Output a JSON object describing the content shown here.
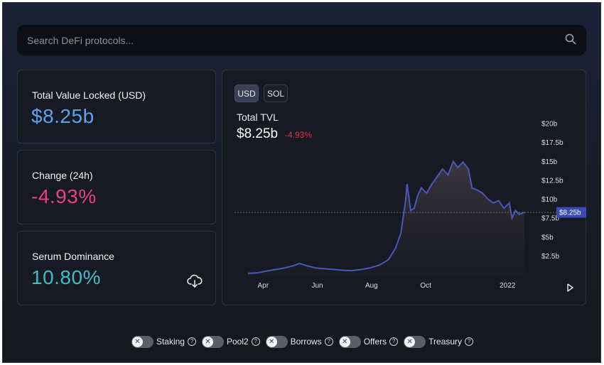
{
  "search": {
    "placeholder": "Search DeFi protocols..."
  },
  "cards": {
    "tvl": {
      "label": "Total Value Locked (USD)",
      "value": "$8.25b",
      "color": "#5aa4ee"
    },
    "change": {
      "label": "Change (24h)",
      "value": "-4.93%",
      "color": "#ea3f8a"
    },
    "dominance": {
      "label": "Serum Dominance",
      "value": "10.80%",
      "color": "#3fbcc4"
    }
  },
  "chart": {
    "currency_options": [
      "USD",
      "SOL"
    ],
    "selected_currency": "USD",
    "title": "Total TVL",
    "value": "$8.25b",
    "change": "-4.93%",
    "current_marker_label": "$8.25b",
    "colors": {
      "line": "#4a58b8",
      "marker": "#3b4bb5",
      "negative": "#e0324a"
    }
  },
  "chart_data": {
    "type": "area",
    "ylim": [
      0,
      20
    ],
    "y_ticks": [
      "$2.5b",
      "$5b",
      "$7.5b",
      "$10b",
      "$12.5b",
      "$15b",
      "$17.5b",
      "$20b"
    ],
    "x_ticks": [
      "Apr",
      "Jun",
      "Aug",
      "Oct",
      "2022"
    ],
    "x_range": [
      "2021-03-15",
      "2022-01-20"
    ],
    "current_value": 8.25,
    "points": [
      [
        "2021-03-15",
        0.2
      ],
      [
        "2021-03-25",
        0.25
      ],
      [
        "2021-04-05",
        0.5
      ],
      [
        "2021-04-15",
        0.7
      ],
      [
        "2021-04-25",
        0.9
      ],
      [
        "2021-05-05",
        1.2
      ],
      [
        "2021-05-12",
        1.5
      ],
      [
        "2021-05-20",
        1.2
      ],
      [
        "2021-05-30",
        0.9
      ],
      [
        "2021-06-10",
        0.8
      ],
      [
        "2021-06-20",
        0.7
      ],
      [
        "2021-06-30",
        0.6
      ],
      [
        "2021-07-10",
        0.55
      ],
      [
        "2021-07-20",
        0.7
      ],
      [
        "2021-07-30",
        0.9
      ],
      [
        "2021-08-10",
        1.3
      ],
      [
        "2021-08-20",
        2.0
      ],
      [
        "2021-08-28",
        3.5
      ],
      [
        "2021-09-03",
        5.5
      ],
      [
        "2021-09-08",
        9.5
      ],
      [
        "2021-09-10",
        12.0
      ],
      [
        "2021-09-14",
        8.5
      ],
      [
        "2021-09-18",
        8.8
      ],
      [
        "2021-09-22",
        10.5
      ],
      [
        "2021-09-26",
        11.5
      ],
      [
        "2021-10-02",
        10.8
      ],
      [
        "2021-10-08",
        12.0
      ],
      [
        "2021-10-14",
        13.0
      ],
      [
        "2021-10-20",
        14.0
      ],
      [
        "2021-10-26",
        13.2
      ],
      [
        "2021-11-01",
        15.0
      ],
      [
        "2021-11-06",
        14.2
      ],
      [
        "2021-11-12",
        14.9
      ],
      [
        "2021-11-18",
        14.0
      ],
      [
        "2021-11-22",
        11.5
      ],
      [
        "2021-11-28",
        11.2
      ],
      [
        "2021-12-04",
        10.8
      ],
      [
        "2021-12-10",
        10.0
      ],
      [
        "2021-12-16",
        9.5
      ],
      [
        "2021-12-22",
        9.8
      ],
      [
        "2021-12-28",
        8.8
      ],
      [
        "2022-01-03",
        9.5
      ],
      [
        "2022-01-06",
        7.5
      ],
      [
        "2022-01-10",
        8.5
      ],
      [
        "2022-01-14",
        8.0
      ],
      [
        "2022-01-20",
        8.25
      ]
    ]
  },
  "filters": [
    {
      "label": "Staking",
      "help": "?"
    },
    {
      "label": "Pool2",
      "help": "?"
    },
    {
      "label": "Borrows",
      "help": "?"
    },
    {
      "label": "Offers",
      "help": "?"
    },
    {
      "label": "Treasury",
      "help": "?"
    }
  ],
  "icons": {
    "search": "search-icon",
    "download": "download-icon",
    "play": "play-icon",
    "close": "close-icon",
    "help": "help-icon"
  }
}
